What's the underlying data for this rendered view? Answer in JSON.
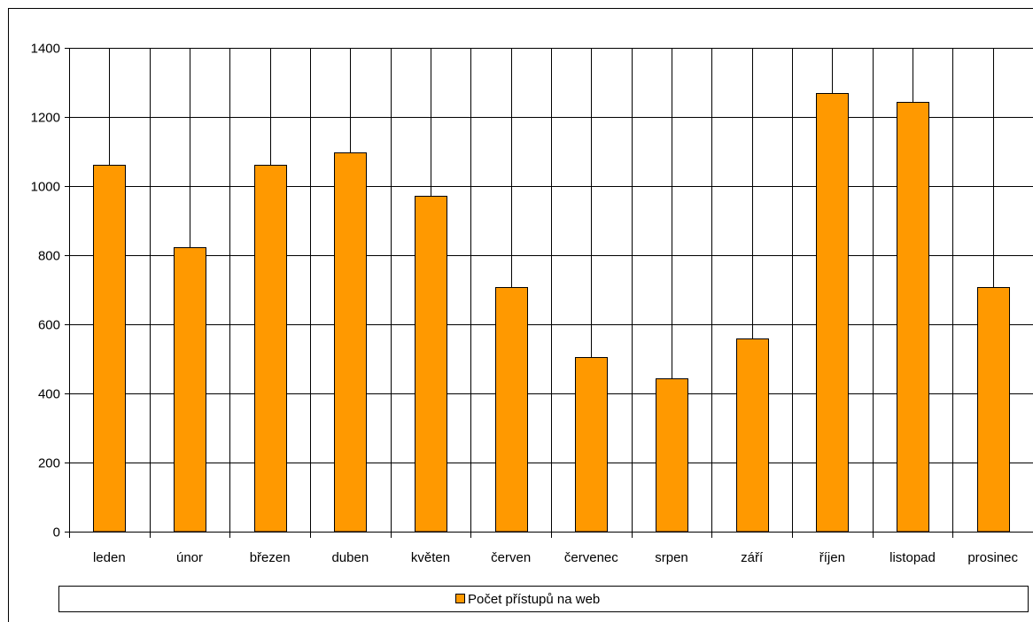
{
  "chart_data": {
    "type": "bar",
    "categories": [
      "leden",
      "únor",
      "březen",
      "duben",
      "květen",
      "červen",
      "červenec",
      "srpen",
      "září",
      "říjen",
      "listopad",
      "prosinec"
    ],
    "series": [
      {
        "name": "Počet přístupů na web",
        "values": [
          1062,
          824,
          1061,
          1097,
          973,
          707,
          506,
          443,
          558,
          1269,
          1243,
          707
        ],
        "color": "#FF9900"
      }
    ],
    "ylim": [
      0,
      1400
    ],
    "yticks": [
      0,
      200,
      400,
      600,
      800,
      1000,
      1200,
      1400
    ],
    "grid": "both",
    "legend_placement": "bottom"
  }
}
